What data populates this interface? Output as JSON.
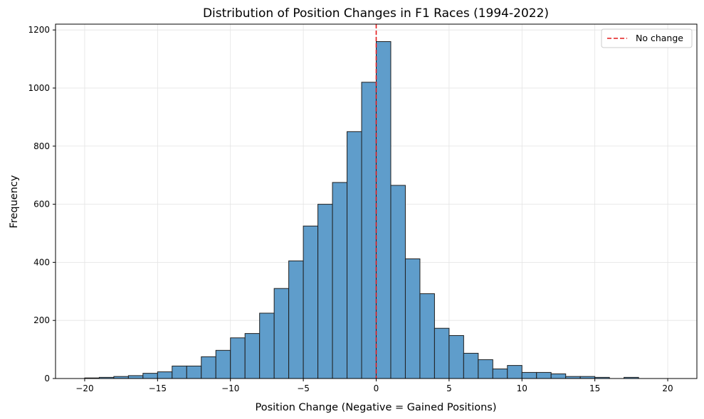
{
  "chart_data": {
    "type": "bar",
    "title": "Distribution of Position Changes in F1 Races (1994-2022)",
    "xlabel": "Position Change (Negative = Gained Positions)",
    "ylabel": "Frequency",
    "xlim": [
      -22,
      22
    ],
    "ylim": [
      0,
      1220
    ],
    "xticks": [
      -20,
      -15,
      -10,
      -5,
      0,
      5,
      10,
      15,
      20
    ],
    "xtick_labels": [
      "−20",
      "−15",
      "−10",
      "−5",
      "0",
      "5",
      "10",
      "15",
      "20"
    ],
    "yticks": [
      0,
      200,
      400,
      600,
      800,
      1000,
      1200
    ],
    "ytick_labels": [
      "0",
      "200",
      "400",
      "600",
      "800",
      "1000",
      "1200"
    ],
    "bin_width": 1,
    "bins": [
      {
        "x0": -20,
        "count": 2
      },
      {
        "x0": -19,
        "count": 4
      },
      {
        "x0": -18,
        "count": 7
      },
      {
        "x0": -17,
        "count": 10
      },
      {
        "x0": -16,
        "count": 18
      },
      {
        "x0": -15,
        "count": 23
      },
      {
        "x0": -14,
        "count": 43
      },
      {
        "x0": -13,
        "count": 43
      },
      {
        "x0": -12,
        "count": 75
      },
      {
        "x0": -11,
        "count": 97
      },
      {
        "x0": -10,
        "count": 140
      },
      {
        "x0": -9,
        "count": 155
      },
      {
        "x0": -8,
        "count": 225
      },
      {
        "x0": -7,
        "count": 310
      },
      {
        "x0": -6,
        "count": 405
      },
      {
        "x0": -5,
        "count": 525
      },
      {
        "x0": -4,
        "count": 600
      },
      {
        "x0": -3,
        "count": 675
      },
      {
        "x0": -2,
        "count": 850
      },
      {
        "x0": -1,
        "count": 1020
      },
      {
        "x0": 0,
        "count": 1160
      },
      {
        "x0": 1,
        "count": 665
      },
      {
        "x0": 2,
        "count": 412
      },
      {
        "x0": 3,
        "count": 292
      },
      {
        "x0": 4,
        "count": 173
      },
      {
        "x0": 5,
        "count": 148
      },
      {
        "x0": 6,
        "count": 87
      },
      {
        "x0": 7,
        "count": 65
      },
      {
        "x0": 8,
        "count": 33
      },
      {
        "x0": 9,
        "count": 45
      },
      {
        "x0": 10,
        "count": 21
      },
      {
        "x0": 11,
        "count": 21
      },
      {
        "x0": 12,
        "count": 16
      },
      {
        "x0": 13,
        "count": 7
      },
      {
        "x0": 14,
        "count": 7
      },
      {
        "x0": 15,
        "count": 4
      },
      {
        "x0": 16,
        "count": 0
      },
      {
        "x0": 17,
        "count": 4
      },
      {
        "x0": 18,
        "count": 0
      },
      {
        "x0": 19,
        "count": 0
      }
    ],
    "reference_line": {
      "x": 0,
      "label": "No change",
      "color": "#e41a1c",
      "style": "dashed"
    },
    "legend": {
      "position": "top-right",
      "entries": [
        "No change"
      ]
    },
    "grid": true,
    "bar_color": "#5f9dcb",
    "bar_edge_color": "#1f1f1f"
  }
}
